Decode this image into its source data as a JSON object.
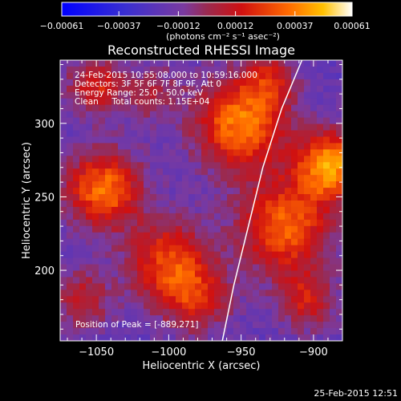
{
  "chart_data": {
    "type": "heatmap",
    "title": "Reconstructed RHESSI Image",
    "xlabel": "Heliocentric X (arcsec)",
    "ylabel": "Heliocentric Y (arcsec)",
    "xlim": [
      -1075,
      -880
    ],
    "ylim": [
      152,
      343
    ],
    "xticks": [
      -1050,
      -1000,
      -950,
      -900
    ],
    "yticks": [
      200,
      250,
      300
    ],
    "xtick_labels": [
      "−1050",
      "−1000",
      "−950",
      "−900"
    ],
    "ytick_labels": [
      "200",
      "250",
      "300"
    ],
    "colorbar": {
      "ticks": [
        -0.00061,
        -0.00037,
        -0.00012,
        0.00012,
        0.00037,
        0.00061
      ],
      "tick_labels": [
        "−0.00061",
        "−0.00037",
        "−0.00012",
        "0.00012",
        "0.00037",
        "0.00061"
      ],
      "unit_label": "(photons cm⁻² s⁻¹ asec⁻²)",
      "range": [
        -0.00061,
        0.00061
      ]
    },
    "info_lines": [
      "24-Feb-2015 10:55:08.000 to 10:59:16.000",
      "Detectors: 3F 5F 6F 7F 8F 9F, Att 0",
      "Energy Range: 25.0 - 50.0 keV",
      "Clean     Total counts: 1.15E+04"
    ],
    "peak_label": "Position of Peak = [-889,271]",
    "peak_position": [
      -889,
      271
    ],
    "limb_curve": [
      [
        -963,
        152
      ],
      [
        -955,
        190
      ],
      [
        -945,
        230
      ],
      [
        -935,
        270
      ],
      [
        -922,
        310
      ],
      [
        -908,
        343
      ]
    ],
    "sources": [
      {
        "x": -950,
        "y": 300,
        "amp": 0.00056,
        "sigma": 22
      },
      {
        "x": -1045,
        "y": 255,
        "amp": 0.00054,
        "sigma": 18
      },
      {
        "x": -1000,
        "y": 205,
        "amp": 0.00044,
        "sigma": 20
      },
      {
        "x": -980,
        "y": 180,
        "amp": 0.0003,
        "sigma": 16
      },
      {
        "x": -920,
        "y": 230,
        "amp": 0.0005,
        "sigma": 22
      },
      {
        "x": -889,
        "y": 271,
        "amp": 0.00061,
        "sigma": 16
      },
      {
        "x": -905,
        "y": 180,
        "amp": 0.00032,
        "sigma": 14
      },
      {
        "x": -1050,
        "y": 325,
        "amp": 0.00034,
        "sigma": 14
      },
      {
        "x": -1060,
        "y": 180,
        "amp": 0.00028,
        "sigma": 14
      },
      {
        "x": -930,
        "y": 330,
        "amp": 0.00026,
        "sigma": 12
      },
      {
        "x": -1010,
        "y": 320,
        "amp": 0.0002,
        "sigma": 14
      }
    ],
    "background_level": -0.00018
  },
  "timestamp": "25-Feb-2015 12:51"
}
